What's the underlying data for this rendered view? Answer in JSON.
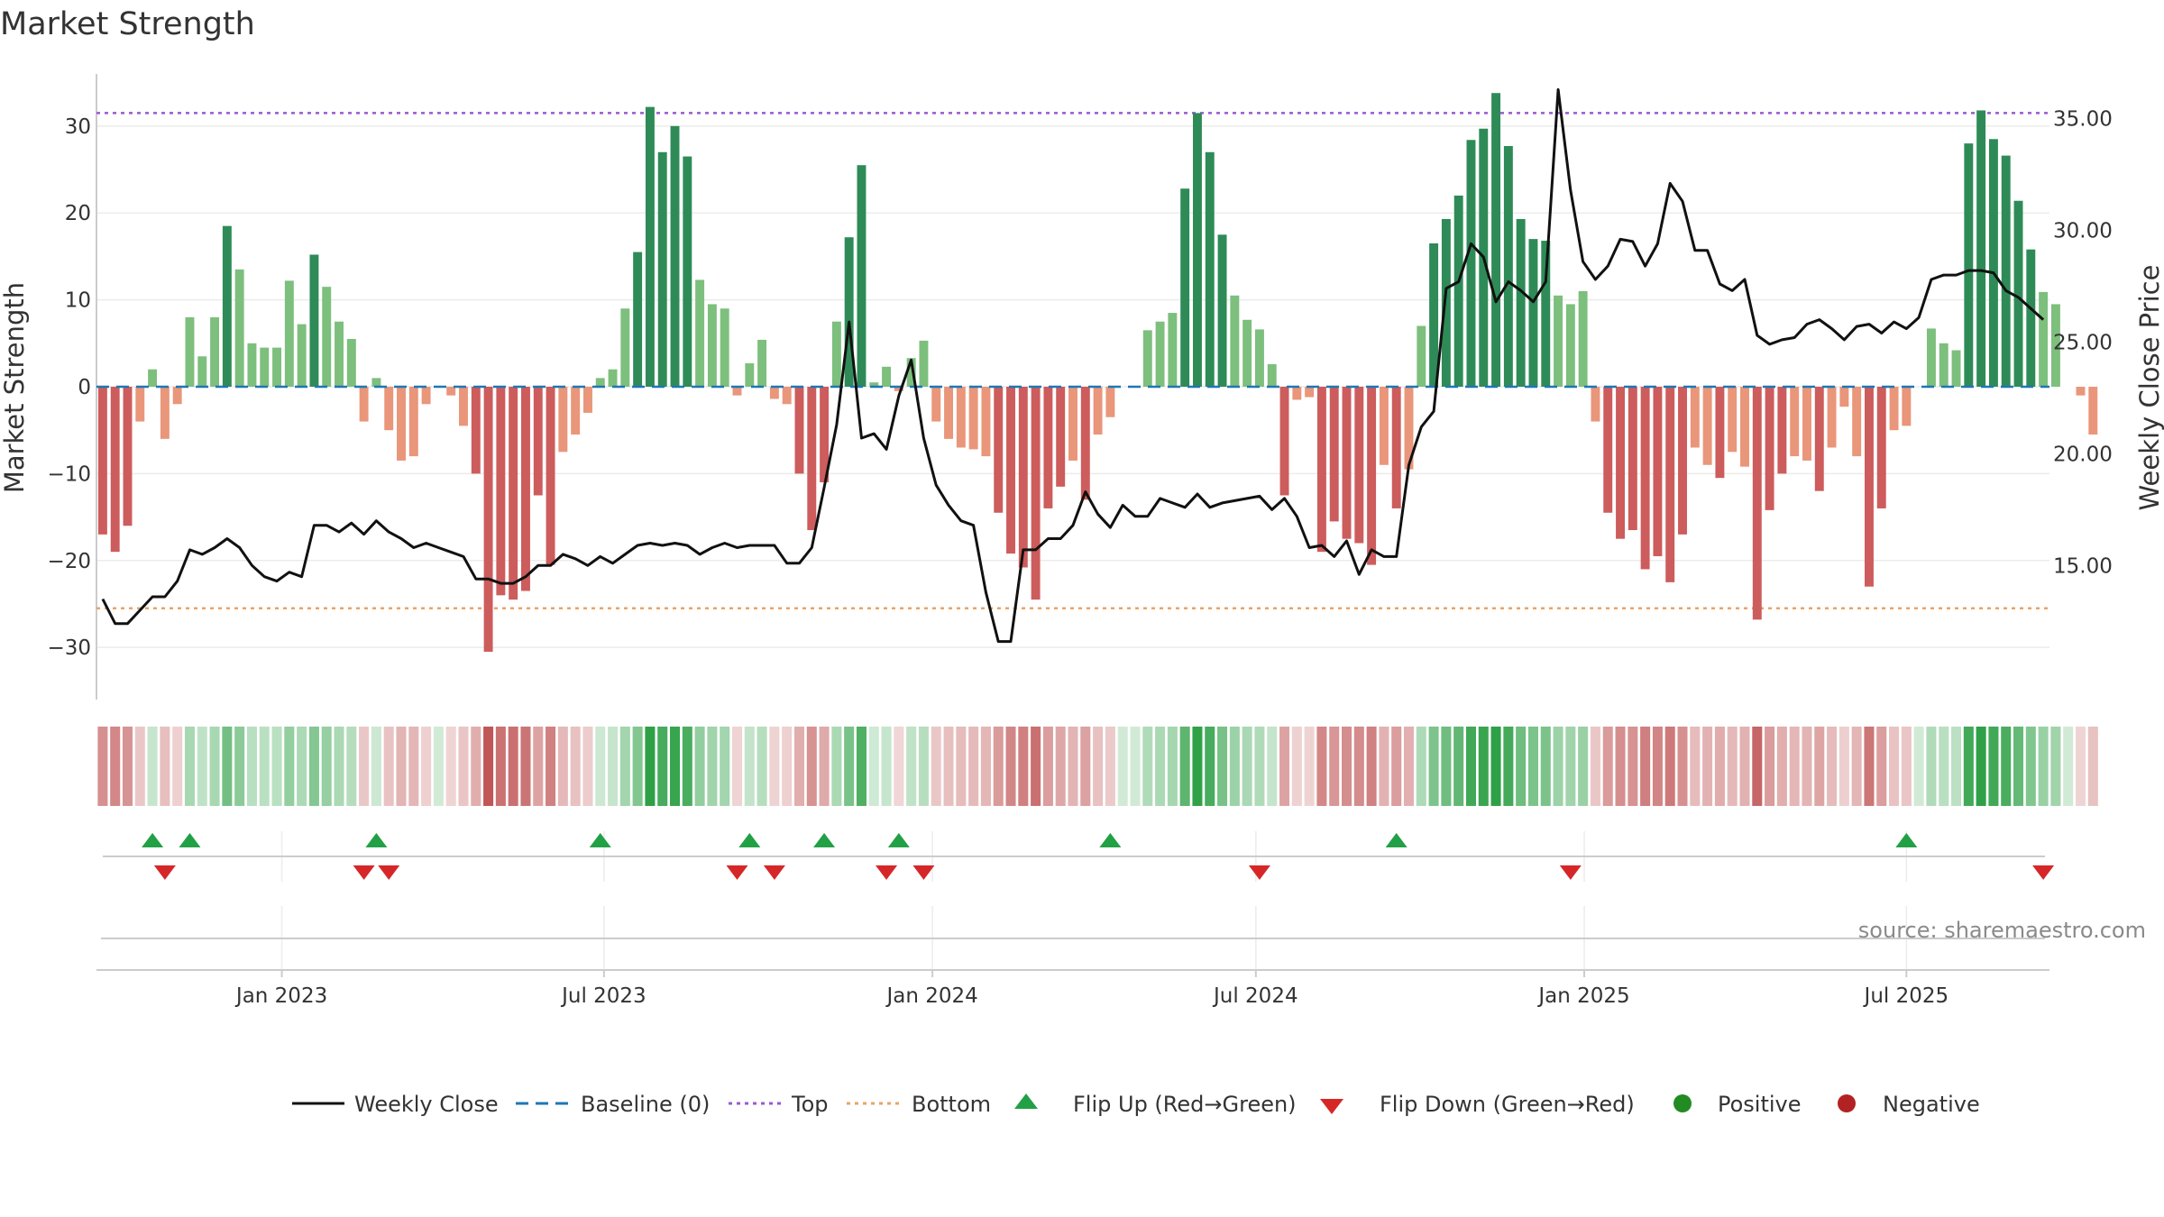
{
  "title": "Market Strength",
  "chart_data": {
    "type": "bar",
    "title": "Market Strength",
    "ylabel": "Market Strength",
    "y2label": "Weekly Close Price",
    "ylim": [
      -36,
      36
    ],
    "y2lim": [
      9.0,
      37.0
    ],
    "yticks": [
      30,
      20,
      10,
      0,
      -10,
      -20,
      -30
    ],
    "ytick_labels": [
      "30",
      "20",
      "10",
      "0",
      "−10",
      "−20",
      "−30"
    ],
    "y2ticks": [
      35,
      30,
      25,
      20,
      15
    ],
    "y2tick_labels": [
      "35.00",
      "30.00",
      "25.00",
      "20.00",
      "15.00"
    ],
    "xlim": [
      0,
      157
    ],
    "x_ticks": [
      {
        "label": "Jan 2023",
        "pos": 14.9
      },
      {
        "label": "Jul 2023",
        "pos": 40.8
      },
      {
        "label": "Jan 2024",
        "pos": 67.2
      },
      {
        "label": "Jul 2024",
        "pos": 93.2
      },
      {
        "label": "Jan 2025",
        "pos": 119.6
      },
      {
        "label": "Jul 2025",
        "pos": 145.5
      }
    ],
    "top_line": 31.5,
    "bottom_line": -25.5,
    "strength": [
      -17,
      -19,
      -16,
      -4,
      2,
      -6,
      -2,
      8,
      3.5,
      8,
      18.5,
      13.5,
      5,
      4.5,
      4.5,
      12.2,
      7.2,
      15.2,
      11.5,
      7.5,
      5.5,
      -4,
      1,
      -5,
      -8.5,
      -8,
      -2,
      0,
      -1,
      -4.5,
      -10,
      -30.5,
      -24,
      -24.5,
      -23.5,
      -12.5,
      -20.5,
      -7.5,
      -5.5,
      -3,
      1,
      2,
      9,
      15.5,
      32.2,
      27,
      30,
      26.5,
      12.3,
      9.5,
      9,
      -1,
      2.7,
      5.4,
      -1.4,
      -2,
      -10,
      -16.5,
      -11,
      7.5,
      17.2,
      25.5,
      0.5,
      2.3,
      -0.5,
      3.3,
      5.3,
      -4,
      -6,
      -7,
      -7.2,
      -8,
      -14.5,
      -19.2,
      -20.8,
      -24.5,
      -14,
      -11.5,
      -8.5,
      -13,
      -5.5,
      -3.5,
      0,
      0,
      6.5,
      7.5,
      8.5,
      22.8,
      31.5,
      27,
      17.5,
      10.5,
      7.7,
      6.6,
      2.6,
      -12.5,
      -1.5,
      -1.2,
      -19,
      -15.5,
      -17.5,
      -18,
      -20.5,
      -9,
      -14,
      -9.5,
      7,
      16.5,
      19.3,
      22,
      28.4,
      29.7,
      33.8,
      27.7,
      19.3,
      17,
      16.8,
      10.5,
      9.5,
      11,
      -4,
      -14.5,
      -17.5,
      -16.5,
      -21,
      -19.5,
      -22.5,
      -17,
      -7,
      -9,
      -10.5,
      -7.5,
      -9.2,
      -26.8,
      -14.2,
      -10,
      -8,
      -8.5,
      -12,
      -7,
      -2.3,
      -8,
      -23,
      -14,
      -5,
      -4.5,
      0,
      6.7,
      5,
      4.2,
      28,
      31.8,
      28.5,
      26.6,
      21.4,
      15.8,
      10.9,
      9.5,
      0,
      -1,
      -5.5
    ],
    "weekly_close": [
      13.5,
      12.4,
      12.4,
      13.0,
      13.6,
      13.6,
      14.3,
      15.7,
      15.5,
      15.8,
      16.2,
      15.8,
      15.0,
      14.5,
      14.3,
      14.7,
      14.5,
      16.8,
      16.8,
      16.5,
      16.9,
      16.4,
      17.0,
      16.5,
      16.2,
      15.8,
      16.0,
      15.8,
      15.6,
      15.4,
      14.4,
      14.4,
      14.2,
      14.2,
      14.5,
      15.0,
      15.0,
      15.5,
      15.3,
      15.0,
      15.4,
      15.1,
      15.5,
      15.9,
      16.0,
      15.9,
      16.0,
      15.9,
      15.5,
      15.8,
      16.0,
      15.8,
      15.9,
      15.9,
      15.9,
      15.1,
      15.1,
      15.8,
      18.5,
      21.3,
      25.9,
      20.7,
      20.9,
      20.2,
      22.6,
      24.2,
      20.7,
      18.6,
      17.7,
      17.0,
      16.8,
      13.8,
      11.6,
      11.6,
      15.7,
      15.7,
      16.2,
      16.2,
      16.8,
      18.3,
      17.3,
      16.7,
      17.7,
      17.2,
      17.2,
      18.0,
      17.8,
      17.6,
      18.2,
      17.6,
      17.8,
      17.9,
      18.0,
      18.1,
      17.5,
      18.0,
      17.2,
      15.8,
      15.9,
      15.4,
      16.1,
      14.6,
      15.7,
      15.4,
      15.4,
      19.5,
      21.2,
      21.9,
      27.4,
      27.7,
      29.4,
      28.8,
      26.8,
      27.7,
      27.3,
      26.8,
      27.7,
      36.3,
      31.8,
      28.6,
      27.8,
      28.4,
      29.6,
      29.5,
      28.4,
      29.4,
      32.1,
      31.3,
      29.1,
      29.1,
      27.6,
      27.3,
      27.8,
      25.3,
      24.9,
      25.1,
      25.2,
      25.8,
      26.0,
      25.6,
      25.1,
      25.7,
      25.8,
      25.4,
      25.9,
      25.6,
      26.1,
      27.8,
      28.0,
      28.0,
      28.2,
      28.2,
      28.1,
      27.3,
      27.0,
      26.5,
      26.0
    ],
    "flip_up_index": [
      4,
      7,
      22,
      40,
      52,
      58,
      64,
      81,
      104,
      145
    ],
    "flip_down_index": [
      5,
      21,
      23,
      51,
      54,
      63,
      66,
      93,
      118,
      156
    ],
    "legend": [
      "Weekly Close",
      "Baseline (0)",
      "Top",
      "Bottom",
      "Flip Up (Red→Green)",
      "Flip Down (Green→Red)",
      "Positive",
      "Negative"
    ]
  },
  "colors": {
    "pos_strong": "#2e8b57",
    "pos_weak": "#7dbf7d",
    "neg_strong": "#cd5c5c",
    "neg_weak": "#e9967a",
    "line": "#111111",
    "baseline": "#1f77b4",
    "top": "#9b59d0",
    "bottom": "#e8a46a",
    "flip_up": "#22a045",
    "flip_down": "#d62728",
    "positive": "#228b22",
    "negative": "#b22222",
    "grid": "#ececec",
    "axis": "#cccccc"
  },
  "source": "source: sharemaestro.com"
}
